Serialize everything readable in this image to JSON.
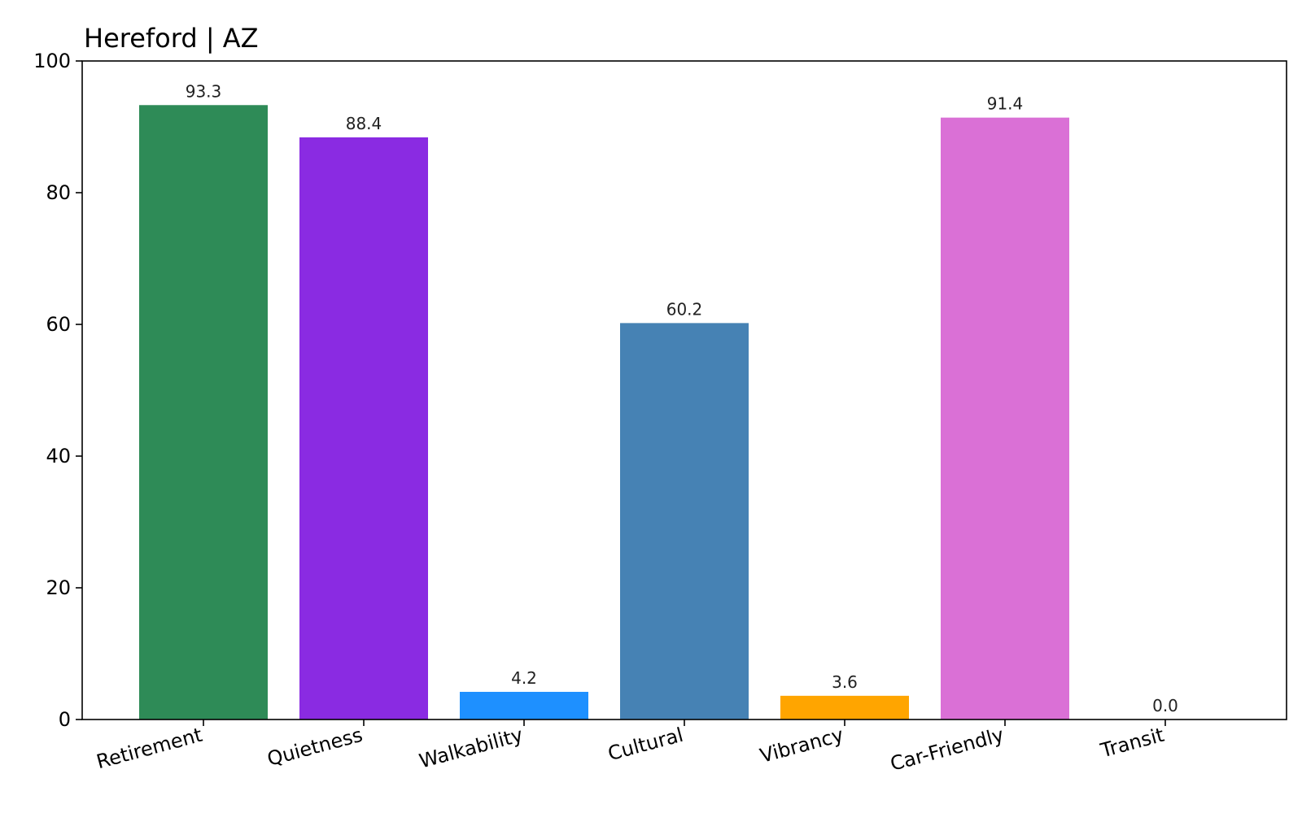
{
  "chart_data": {
    "type": "bar",
    "title": "Hereford | AZ",
    "xlabel": "",
    "ylabel": "",
    "categories": [
      "Retirement",
      "Quietness",
      "Walkability",
      "Cultural",
      "Vibrancy",
      "Car-Friendly",
      "Transit"
    ],
    "values": [
      93.3,
      88.4,
      4.2,
      60.2,
      3.6,
      91.4,
      0.0
    ],
    "value_labels": [
      "93.3",
      "88.4",
      "4.2",
      "60.2",
      "3.6",
      "91.4",
      "0.0"
    ],
    "colors": [
      "#2e8b57",
      "#8a2be2",
      "#1e90ff",
      "#4682b4",
      "#ffa500",
      "#da70d6",
      "#808080"
    ],
    "ylim": [
      0,
      100
    ],
    "yticks": [
      0,
      20,
      40,
      60,
      80,
      100
    ],
    "ytick_labels": [
      "0",
      "20",
      "40",
      "60",
      "80",
      "100"
    ],
    "grid": false,
    "legend": "none",
    "xtick_rotation": "slanted"
  }
}
